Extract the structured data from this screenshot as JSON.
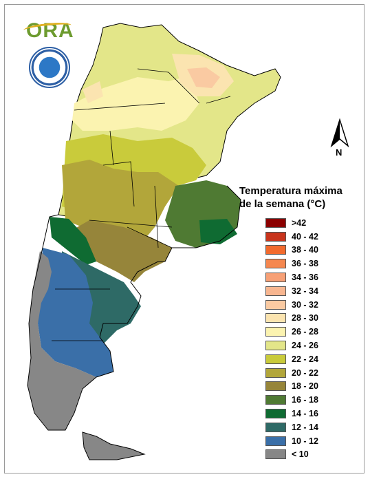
{
  "logo": {
    "text": "ORA"
  },
  "north_arrow": {
    "label": "N"
  },
  "legend": {
    "title_line1": "Temperatura máxima",
    "title_line2": "de la semana (°C)",
    "items": [
      {
        "label": ">42",
        "color": "#8b0000"
      },
      {
        "label": "40 - 42",
        "color": "#c8341c"
      },
      {
        "label": "38 - 40",
        "color": "#f26a2d"
      },
      {
        "label": "36 - 38",
        "color": "#f5874f"
      },
      {
        "label": "34 - 36",
        "color": "#f7a076"
      },
      {
        "label": "32 - 34",
        "color": "#f8b690"
      },
      {
        "label": "30 - 32",
        "color": "#facaa2"
      },
      {
        "label": "28 - 30",
        "color": "#fbe4b0"
      },
      {
        "label": "26 - 28",
        "color": "#fbf3b0"
      },
      {
        "label": "24 - 26",
        "color": "#e3e689"
      },
      {
        "label": "22 - 24",
        "color": "#c9cb3b"
      },
      {
        "label": "20 - 22",
        "color": "#b2a63a"
      },
      {
        "label": "18 - 20",
        "color": "#96853a"
      },
      {
        "label": "16 - 18",
        "color": "#4f7a33"
      },
      {
        "label": "14 - 16",
        "color": "#0f6b32"
      },
      {
        "label": "12 - 14",
        "color": "#2e6a66"
      },
      {
        "label": "10 - 12",
        "color": "#3a6fa8"
      },
      {
        "label": "< 10",
        "color": "#878787"
      }
    ]
  }
}
